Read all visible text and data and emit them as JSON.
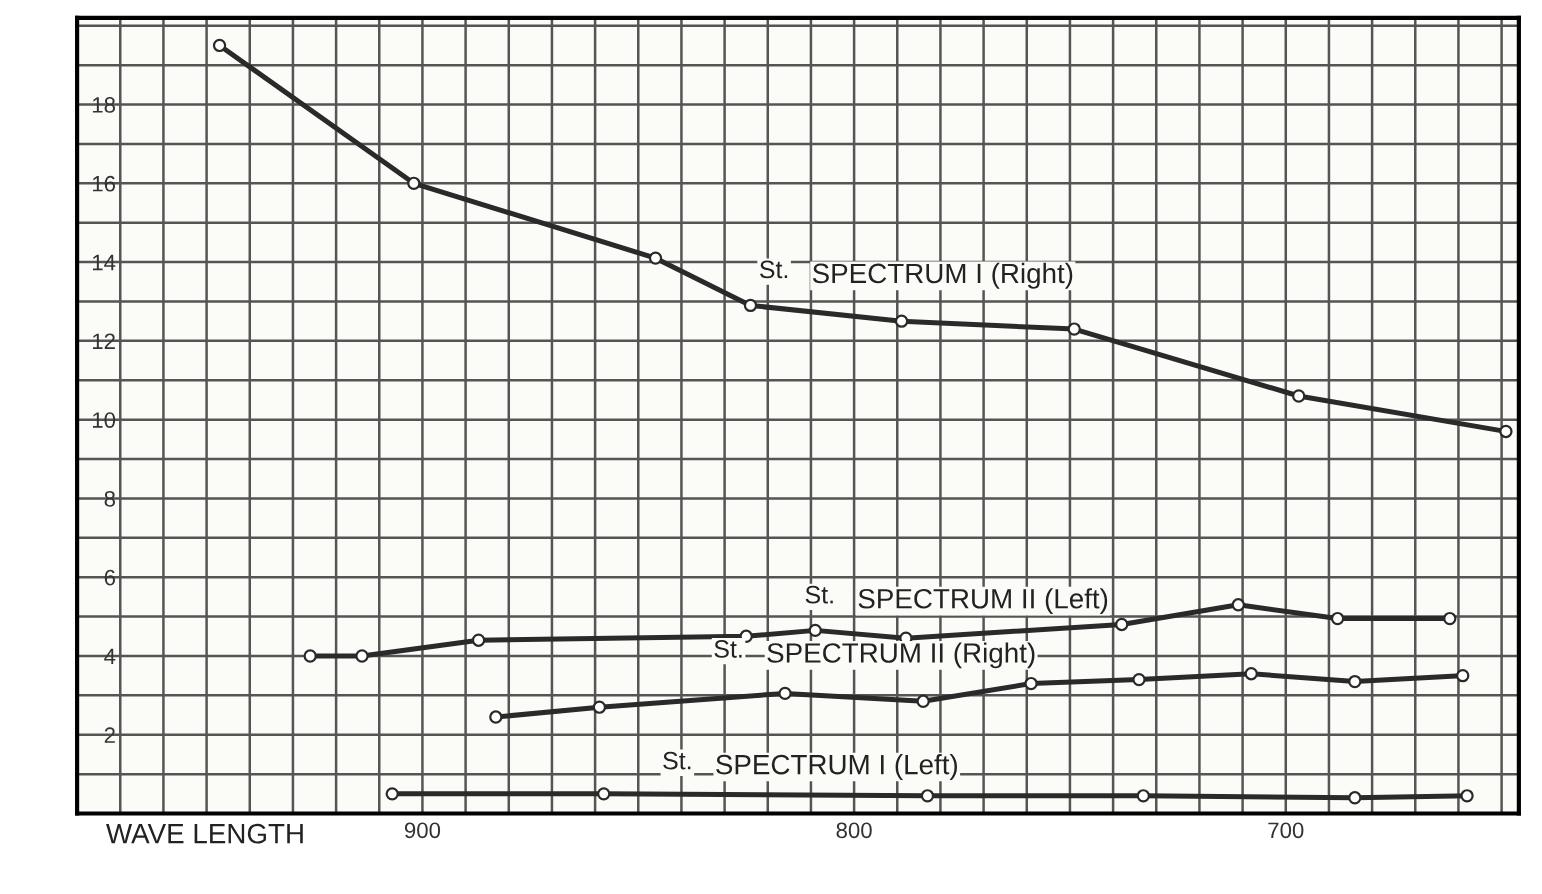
{
  "chart_data": {
    "type": "line",
    "xlabel": "WAVE LENGTH",
    "xlim": [
      980,
      646
    ],
    "ylim": [
      0,
      20.2
    ],
    "xticks": [
      {
        "value": 970,
        "label": null
      },
      {
        "value": 960,
        "label": null
      },
      {
        "value": 950,
        "label": null
      },
      {
        "value": 940,
        "label": null
      },
      {
        "value": 930,
        "label": null
      },
      {
        "value": 920,
        "label": null
      },
      {
        "value": 910,
        "label": null
      },
      900,
      {
        "value": 890,
        "label": null
      },
      {
        "value": 880,
        "label": null
      },
      {
        "value": 870,
        "label": null
      },
      {
        "value": 860,
        "label": null
      },
      {
        "value": 850,
        "label": null
      },
      {
        "value": 840,
        "label": null
      },
      {
        "value": 830,
        "label": null
      },
      {
        "value": 820,
        "label": null
      },
      {
        "value": 810,
        "label": null
      },
      800,
      {
        "value": 790,
        "label": null
      },
      {
        "value": 780,
        "label": null
      },
      {
        "value": 770,
        "label": null
      },
      {
        "value": 760,
        "label": null
      },
      {
        "value": 750,
        "label": null
      },
      {
        "value": 740,
        "label": null
      },
      {
        "value": 730,
        "label": null
      },
      {
        "value": 720,
        "label": null
      },
      {
        "value": 710,
        "label": null
      },
      700,
      {
        "value": 690,
        "label": null
      },
      {
        "value": 680,
        "label": null
      },
      {
        "value": 670,
        "label": null
      },
      {
        "value": 660,
        "label": null
      },
      {
        "value": 650,
        "label": null
      }
    ],
    "yticks": [
      {
        "value": 1,
        "label": null
      },
      2,
      {
        "value": 3,
        "label": null
      },
      4,
      {
        "value": 5,
        "label": null
      },
      6,
      {
        "value": 7,
        "label": null
      },
      8,
      {
        "value": 9,
        "label": null
      },
      10,
      {
        "value": 11,
        "label": null
      },
      12,
      {
        "value": 13,
        "label": null
      },
      14,
      {
        "value": 15,
        "label": null
      },
      16,
      {
        "value": 17,
        "label": null
      },
      18,
      {
        "value": 19,
        "label": null
      },
      {
        "value": 20,
        "label": null
      }
    ],
    "grid": true,
    "marker": "circle",
    "line_style": "solid",
    "legend": false,
    "series": [
      {
        "name": "SPECTRUM I (Right)",
        "color": "#2a2a2a",
        "x": [
          947,
          902,
          846,
          824,
          789,
          749,
          697,
          649
        ],
        "values": [
          19.5,
          16,
          14.1,
          12.9,
          12.5,
          12.3,
          10.6,
          9.7
        ]
      },
      {
        "name": "SPECTRUM II (Left)",
        "color": "#2a2a2a",
        "x": [
          926,
          914,
          887,
          825,
          809,
          788,
          738,
          711,
          688,
          662
        ],
        "values": [
          4.0,
          4.0,
          4.4,
          4.5,
          4.65,
          4.45,
          4.8,
          5.3,
          4.95,
          4.95
        ]
      },
      {
        "name": "SPECTRUM II (Right)",
        "color": "#2a2a2a",
        "x": [
          883,
          859,
          816,
          784,
          759,
          734,
          708,
          684,
          659
        ],
        "values": [
          2.45,
          2.7,
          3.05,
          2.85,
          3.3,
          3.4,
          3.55,
          3.35,
          3.5
        ]
      },
      {
        "name": "SPECTRUM I (Left)",
        "color": "#2a2a2a",
        "x": [
          907,
          858,
          783,
          733,
          684,
          658
        ],
        "values": [
          0.5,
          0.5,
          0.45,
          0.45,
          0.4,
          0.45
        ]
      }
    ],
    "annotations": [
      "St.",
      "St.",
      "St.",
      "St."
    ]
  }
}
